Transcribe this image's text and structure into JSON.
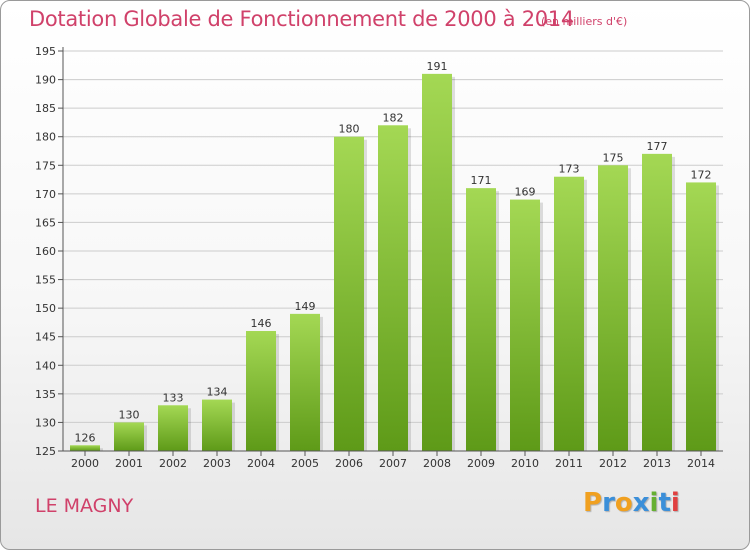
{
  "title": "Dotation Globale de Fonctionnement de 2000 à 2014",
  "unit_note": "(en milliers d'€)",
  "commune": "LE MAGNY",
  "logo": {
    "text": "Proxiti",
    "letters": [
      "P",
      "r",
      "o",
      "x",
      "i",
      "t",
      "i"
    ],
    "colors": [
      "#f0a020",
      "#3b8fd9",
      "#f0a020",
      "#3b8fd9",
      "#66b032",
      "#3b8fd9",
      "#e04040"
    ]
  },
  "colors": {
    "title": "#d0416a",
    "bar_top": "#a4d854",
    "bar_bottom": "#5e9a18",
    "axis": "#555555",
    "grid": "#cccccc"
  },
  "chart_data": {
    "type": "bar",
    "title": "Dotation Globale de Fonctionnement de 2000 à 2014",
    "subtitle": "(en milliers d'€)",
    "xlabel": "",
    "ylabel": "",
    "categories": [
      "2000",
      "2001",
      "2002",
      "2003",
      "2004",
      "2005",
      "2006",
      "2007",
      "2008",
      "2009",
      "2010",
      "2011",
      "2012",
      "2013",
      "2014"
    ],
    "values": [
      126,
      130,
      133,
      134,
      146,
      149,
      180,
      182,
      191,
      171,
      169,
      173,
      175,
      177,
      172
    ],
    "ylim": [
      125,
      195
    ],
    "yticks": [
      125,
      130,
      135,
      140,
      145,
      150,
      155,
      160,
      165,
      170,
      175,
      180,
      185,
      190,
      195
    ],
    "grid": true,
    "data_labels": true
  }
}
